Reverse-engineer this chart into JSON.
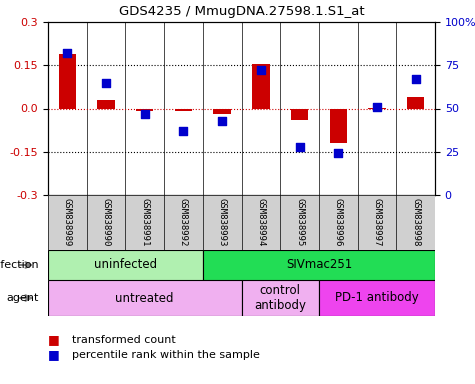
{
  "title": "GDS4235 / MmugDNA.27598.1.S1_at",
  "samples": [
    "GSM838989",
    "GSM838990",
    "GSM838991",
    "GSM838992",
    "GSM838993",
    "GSM838994",
    "GSM838995",
    "GSM838996",
    "GSM838997",
    "GSM838998"
  ],
  "transformed_count": [
    0.19,
    0.03,
    -0.01,
    -0.01,
    -0.02,
    0.155,
    -0.04,
    -0.12,
    0.002,
    0.04
  ],
  "percentile": [
    82,
    65,
    47,
    37,
    43,
    72,
    28,
    24,
    51,
    67
  ],
  "ylim": [
    -0.3,
    0.3
  ],
  "yticks_left": [
    -0.3,
    -0.15,
    0.0,
    0.15,
    0.3
  ],
  "yticks_right": [
    0,
    25,
    50,
    75,
    100
  ],
  "red_color": "#cc0000",
  "blue_color": "#0000cc",
  "infection_labels": [
    {
      "text": "uninfected",
      "start": 0,
      "end": 3,
      "color": "#b0f0b0"
    },
    {
      "text": "SIVmac251",
      "start": 4,
      "end": 9,
      "color": "#22dd55"
    }
  ],
  "agent_labels": [
    {
      "text": "untreated",
      "start": 0,
      "end": 4,
      "color": "#f0b0f0"
    },
    {
      "text": "control\nantibody",
      "start": 5,
      "end": 6,
      "color": "#f0b0f0"
    },
    {
      "text": "PD-1 antibody",
      "start": 7,
      "end": 9,
      "color": "#ee44ee"
    }
  ],
  "legend_red": "transformed count",
  "legend_blue": "percentile rank within the sample",
  "bar_width": 0.45,
  "square_size": 40,
  "dotted_line_color": "#000000",
  "zero_line_color": "#cc0000",
  "sample_bg": "#d0d0d0",
  "fig_bg": "#ffffff"
}
